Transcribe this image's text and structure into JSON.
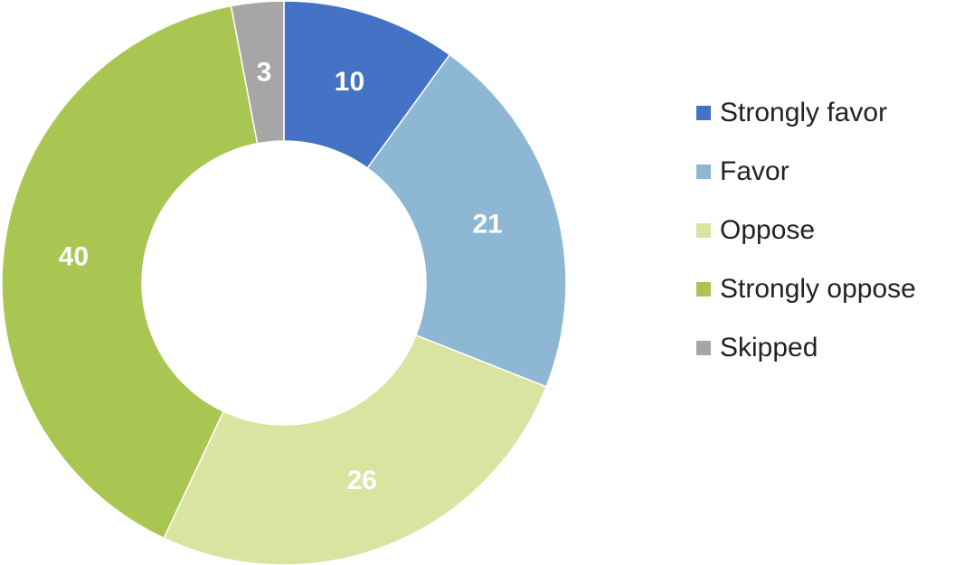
{
  "chart_data": {
    "type": "donut",
    "categories": [
      "Strongly favor",
      "Favor",
      "Oppose",
      "Strongly oppose",
      "Skipped"
    ],
    "values": [
      10,
      21,
      26,
      40,
      3
    ],
    "colors": [
      "#4472c4",
      "#8db7d2",
      "#d9e4a0",
      "#a9c653",
      "#a6a6a6"
    ],
    "legend": "right"
  }
}
